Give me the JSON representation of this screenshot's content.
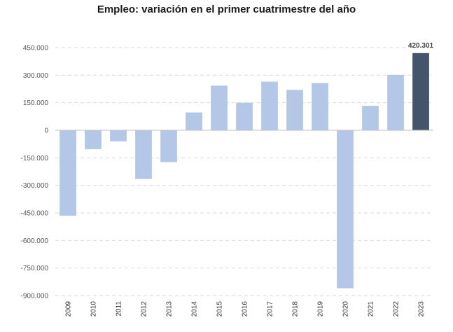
{
  "chart_data": {
    "type": "bar",
    "title": "Empleo: variación en el primer cuatrimestre del año",
    "xlabel": "",
    "ylabel": "",
    "categories": [
      "2009",
      "2010",
      "2011",
      "2012",
      "2013",
      "2014",
      "2015",
      "2016",
      "2017",
      "2018",
      "2019",
      "2020",
      "2021",
      "2022",
      "2023"
    ],
    "values": [
      -465000,
      -103000,
      -60000,
      -265000,
      -173000,
      97000,
      243000,
      150000,
      265000,
      220000,
      257000,
      -860000,
      133000,
      302000,
      420301
    ],
    "ylim": [
      -900000,
      450000
    ],
    "yticks": [
      450000,
      300000,
      150000,
      0,
      -150000,
      -300000,
      -450000,
      -600000,
      -750000,
      -900000
    ],
    "ytick_labels": [
      "450.000",
      "300.000",
      "150.000",
      "0",
      "-150.000",
      "-300.000",
      "-450.000",
      "-600.000",
      "-750.000",
      "-900.000"
    ],
    "grid": true,
    "legend": "none",
    "highlight_index": 14,
    "data_labels": [
      {
        "index": 14,
        "text": "420.301"
      }
    ],
    "colors": {
      "bar": "#b4c7e7",
      "highlight": "#44546a",
      "grid": "#d9d9d9",
      "axis": "#bfbfbf"
    }
  }
}
